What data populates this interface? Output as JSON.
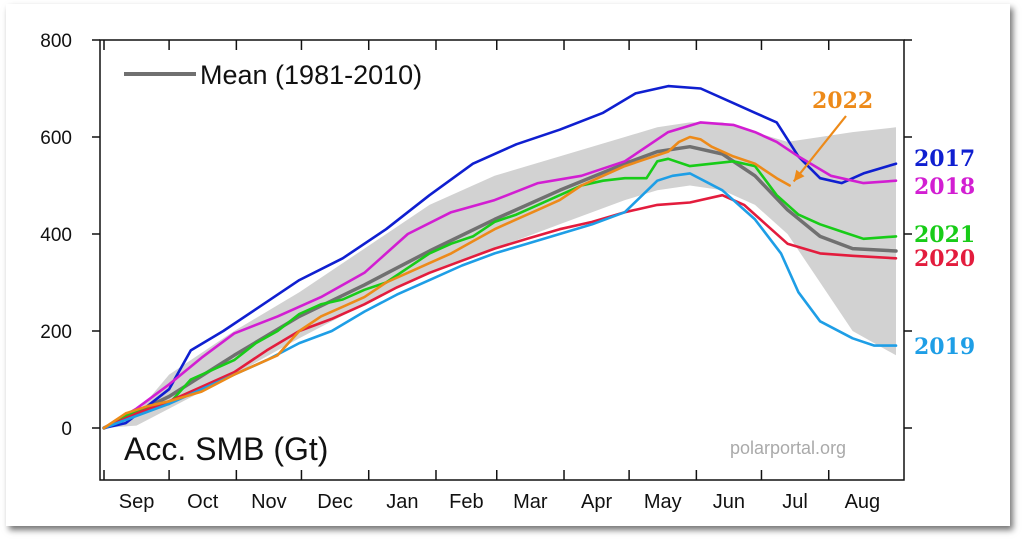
{
  "chart_data": {
    "type": "line",
    "title": "Acc. SMB (Gt)",
    "source": "polarportal.org",
    "ylim": [
      0,
      800
    ],
    "yticks": [
      0,
      200,
      400,
      600,
      800
    ],
    "x_unit": "day of season (Sep 1 = 0)",
    "xlim": [
      0,
      365
    ],
    "months": [
      "Sep",
      "Oct",
      "Nov",
      "Dec",
      "Jan",
      "Feb",
      "Mar",
      "Apr",
      "May",
      "Jun",
      "Jul",
      "Aug"
    ],
    "month_starts": [
      0,
      30,
      61,
      91,
      122,
      153,
      181,
      212,
      242,
      273,
      303,
      334
    ],
    "legend": {
      "mean_label": "Mean (1981-2010)"
    },
    "band": {
      "x": [
        0,
        15,
        30,
        60,
        90,
        120,
        150,
        180,
        210,
        240,
        255,
        270,
        285,
        300,
        315,
        330,
        345,
        365
      ],
      "lower": [
        0,
        5,
        40,
        110,
        185,
        255,
        320,
        370,
        420,
        470,
        490,
        500,
        490,
        460,
        400,
        300,
        200,
        150
      ],
      "upper": [
        0,
        30,
        110,
        200,
        280,
        370,
        460,
        520,
        560,
        600,
        620,
        630,
        630,
        610,
        590,
        600,
        610,
        620
      ]
    },
    "series": [
      {
        "name": "Mean (1981-2010)",
        "color": "#707070",
        "x": [
          0,
          30,
          60,
          90,
          120,
          150,
          180,
          210,
          240,
          255,
          270,
          285,
          300,
          315,
          330,
          345,
          365
        ],
        "y": [
          0,
          65,
          150,
          230,
          295,
          365,
          430,
          490,
          545,
          570,
          580,
          565,
          520,
          450,
          395,
          370,
          365
        ]
      },
      {
        "name": "2017",
        "color": "#0f1fd0",
        "x": [
          0,
          10,
          30,
          40,
          55,
          70,
          90,
          110,
          130,
          150,
          170,
          190,
          210,
          230,
          245,
          260,
          275,
          290,
          300,
          310,
          320,
          330,
          340,
          350,
          365
        ],
        "y": [
          0,
          10,
          80,
          160,
          200,
          245,
          305,
          350,
          410,
          480,
          545,
          585,
          615,
          650,
          690,
          705,
          700,
          670,
          650,
          630,
          560,
          515,
          505,
          525,
          545
        ]
      },
      {
        "name": "2018",
        "color": "#d21ed2",
        "x": [
          0,
          15,
          30,
          45,
          60,
          80,
          100,
          120,
          140,
          160,
          180,
          200,
          220,
          240,
          260,
          275,
          290,
          300,
          310,
          320,
          335,
          350,
          365
        ],
        "y": [
          0,
          40,
          90,
          145,
          195,
          230,
          270,
          320,
          400,
          445,
          470,
          505,
          520,
          550,
          610,
          630,
          625,
          610,
          590,
          560,
          520,
          505,
          510
        ]
      },
      {
        "name": "2021",
        "color": "#18cc18",
        "x": [
          0,
          10,
          20,
          30,
          40,
          50,
          60,
          70,
          80,
          90,
          100,
          110,
          120,
          130,
          140,
          150,
          160,
          170,
          180,
          190,
          200,
          210,
          220,
          230,
          240,
          250,
          255,
          260,
          270,
          280,
          290,
          300,
          310,
          320,
          330,
          340,
          350,
          365
        ],
        "y": [
          0,
          25,
          40,
          50,
          100,
          120,
          140,
          175,
          200,
          235,
          255,
          265,
          285,
          300,
          330,
          360,
          380,
          395,
          425,
          440,
          460,
          480,
          500,
          510,
          515,
          515,
          550,
          555,
          540,
          545,
          550,
          540,
          480,
          440,
          420,
          405,
          390,
          395
        ]
      },
      {
        "name": "2020",
        "color": "#e31c3d",
        "x": [
          0,
          15,
          30,
          45,
          60,
          75,
          90,
          105,
          120,
          135,
          150,
          165,
          180,
          195,
          210,
          225,
          240,
          255,
          270,
          285,
          295,
          305,
          315,
          330,
          345,
          365
        ],
        "y": [
          0,
          30,
          55,
          85,
          115,
          160,
          200,
          225,
          255,
          290,
          320,
          345,
          370,
          390,
          410,
          425,
          445,
          460,
          465,
          480,
          460,
          420,
          380,
          360,
          355,
          350
        ]
      },
      {
        "name": "2019",
        "color": "#1e9ee6",
        "x": [
          0,
          15,
          30,
          45,
          60,
          75,
          90,
          105,
          120,
          135,
          150,
          165,
          180,
          195,
          210,
          225,
          240,
          255,
          262,
          270,
          285,
          300,
          312,
          320,
          330,
          345,
          355,
          365
        ],
        "y": [
          0,
          25,
          50,
          80,
          110,
          140,
          175,
          200,
          240,
          275,
          305,
          335,
          360,
          380,
          400,
          420,
          445,
          510,
          520,
          525,
          490,
          430,
          360,
          280,
          220,
          185,
          170,
          170
        ]
      },
      {
        "name": "2022",
        "color": "#ed8a19",
        "x": [
          0,
          10,
          20,
          30,
          45,
          60,
          70,
          80,
          90,
          100,
          110,
          120,
          130,
          140,
          150,
          160,
          170,
          180,
          190,
          200,
          210,
          220,
          230,
          240,
          250,
          260,
          265,
          270,
          275,
          280,
          290,
          300,
          310,
          316
        ],
        "y": [
          0,
          30,
          45,
          55,
          75,
          110,
          130,
          150,
          200,
          230,
          250,
          270,
          300,
          320,
          340,
          360,
          385,
          410,
          430,
          450,
          470,
          500,
          520,
          540,
          555,
          570,
          590,
          600,
          595,
          580,
          560,
          545,
          515,
          500
        ]
      }
    ],
    "year_labels": [
      {
        "text": "2017",
        "color": "#0f1fd0"
      },
      {
        "text": "2018",
        "color": "#d21ed2"
      },
      {
        "text": "2021",
        "color": "#18cc18"
      },
      {
        "text": "2020",
        "color": "#e31c3d"
      },
      {
        "text": "2019",
        "color": "#1e9ee6"
      }
    ],
    "annotation": {
      "text": "2022",
      "color": "#ed8a19",
      "points_to": {
        "x": 316,
        "y": 500
      }
    }
  }
}
